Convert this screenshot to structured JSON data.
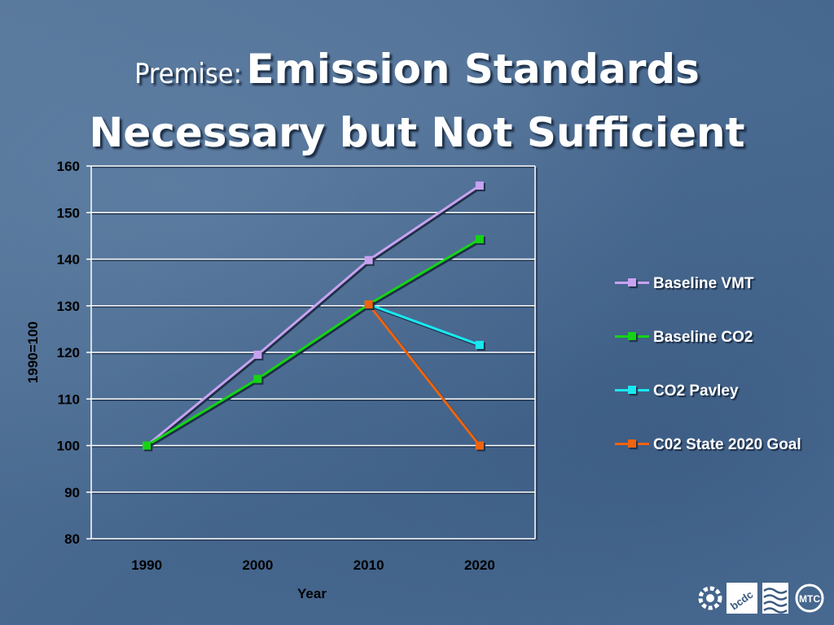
{
  "slide": {
    "title_prefix": "Premise:",
    "title_line1": "Emission Standards",
    "title_line2": "Necessary but Not Sufficient"
  },
  "chart_data": {
    "type": "line",
    "xlabel": "Year",
    "ylabel": "1990=100",
    "categories": [
      "1990",
      "2000",
      "2010",
      "2020"
    ],
    "ylim": [
      80,
      160
    ],
    "yticks": [
      80,
      90,
      100,
      110,
      120,
      130,
      140,
      150,
      160
    ],
    "grid": "horizontal",
    "legend_position": "right",
    "series": [
      {
        "name": "Baseline VMT",
        "color": "#c8a2f0",
        "points": [
          [
            "1990",
            100
          ],
          [
            "2000",
            119.5
          ],
          [
            "2010",
            139.8
          ],
          [
            "2020",
            155.8
          ]
        ]
      },
      {
        "name": "Baseline CO2",
        "color": "#16d316",
        "points": [
          [
            "1990",
            100
          ],
          [
            "2000",
            114.3
          ],
          [
            "2010",
            130.3
          ],
          [
            "2020",
            144.3
          ]
        ]
      },
      {
        "name": "CO2 Pavley",
        "color": "#1ae8f0",
        "points": [
          [
            "2010",
            130.3
          ],
          [
            "2020",
            121.6
          ]
        ]
      },
      {
        "name": "C02 State 2020 Goal",
        "color": "#f0640f",
        "points": [
          [
            "2010",
            130.3
          ],
          [
            "2020",
            100
          ]
        ]
      }
    ]
  },
  "logos": {
    "gear_icon": "gear-icon",
    "bcdc_label": "bcdc",
    "waves_icon": "waves-icon",
    "mtc_label": "MTC"
  }
}
